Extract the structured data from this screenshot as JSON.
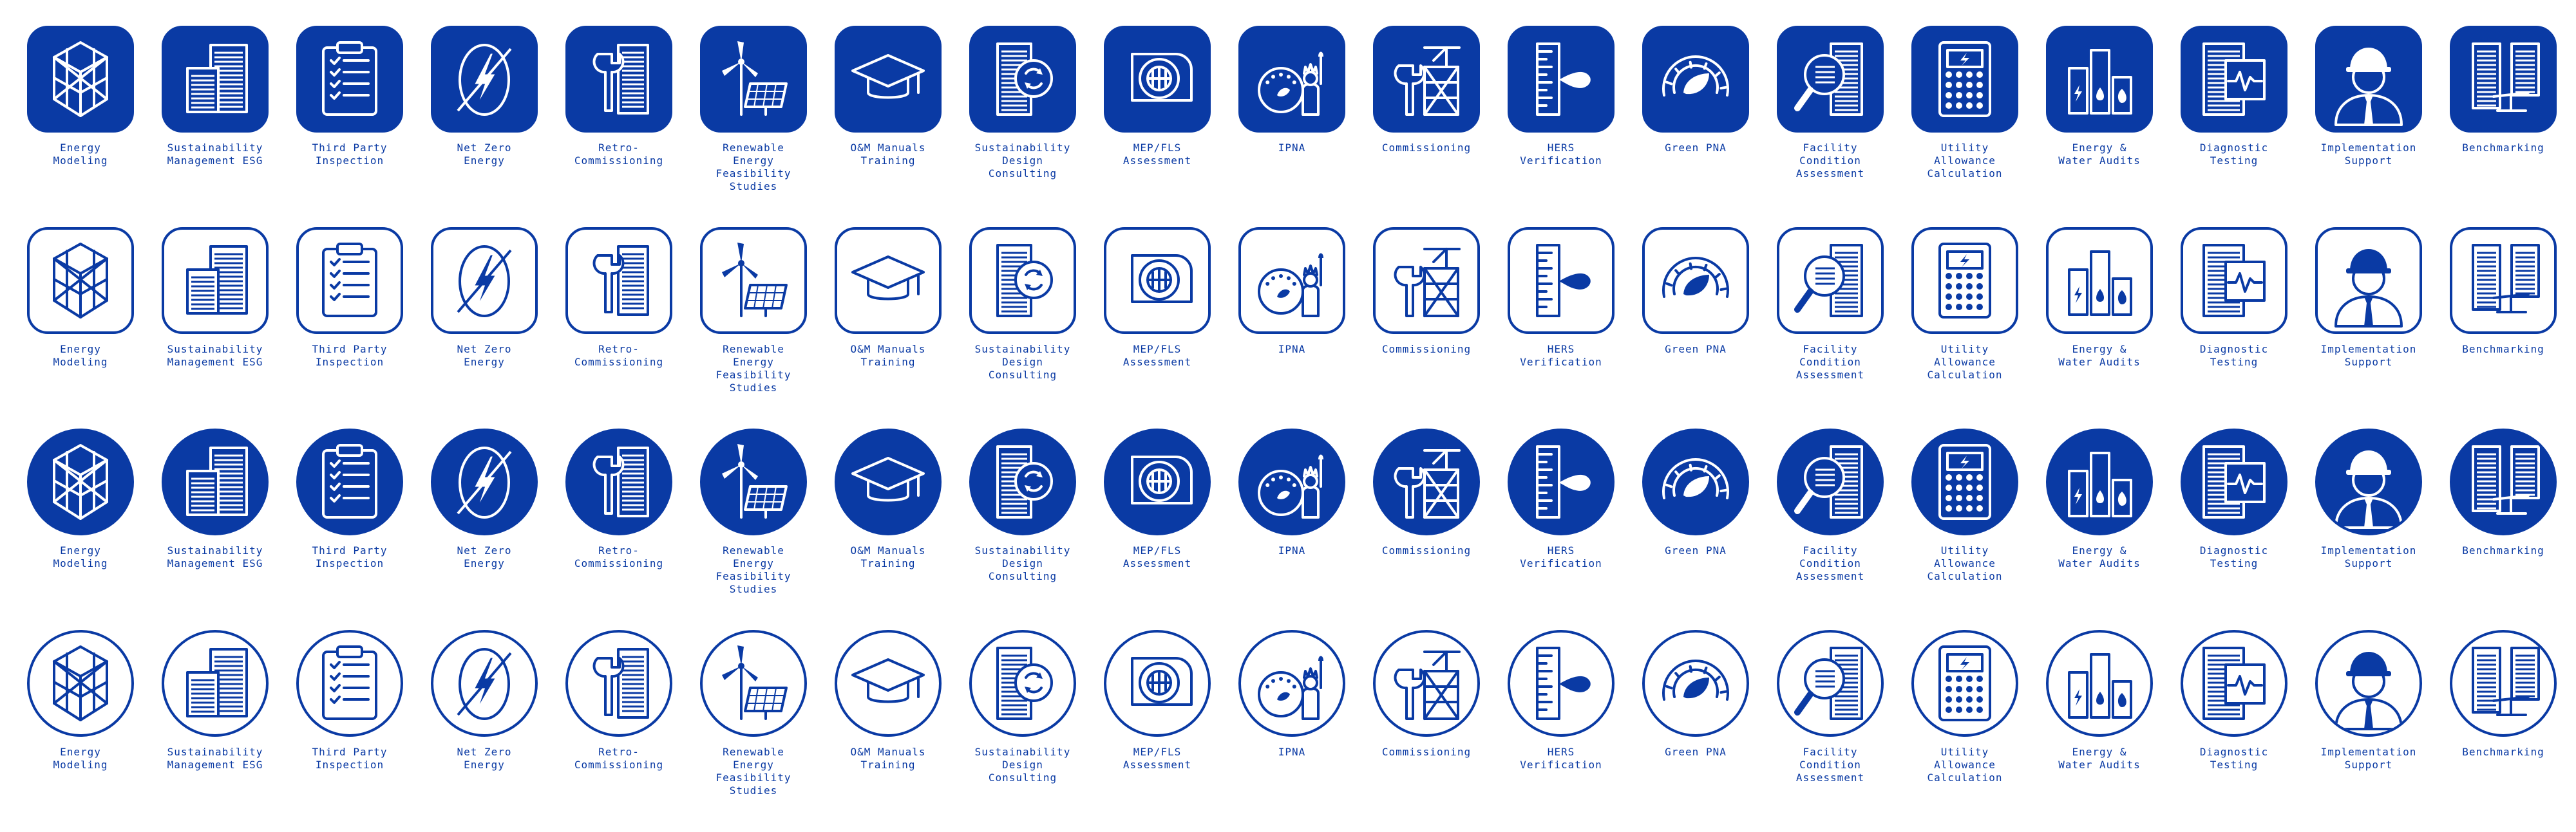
{
  "colors": {
    "brand_blue": "#0a3aa4",
    "background": "#ffffff"
  },
  "icons": [
    {
      "id": "energy-modeling",
      "glyph": "hexagon-3d-structure-icon",
      "lines": [
        "Energy",
        "Modeling"
      ]
    },
    {
      "id": "sustainability-management-esg",
      "glyph": "buildings-icon",
      "lines": [
        "Sustainability",
        "Management ESG"
      ]
    },
    {
      "id": "third-party-inspection",
      "glyph": "clipboard-checklist-icon",
      "lines": [
        "Third Party",
        "Inspection"
      ]
    },
    {
      "id": "net-zero-energy",
      "glyph": "zero-lightning-icon",
      "lines": [
        "Net Zero",
        "Energy"
      ]
    },
    {
      "id": "retro-commissioning",
      "glyph": "wrench-building-icon",
      "lines": [
        "Retro-",
        "Commissioning"
      ]
    },
    {
      "id": "renewable-energy-feasibility-studies",
      "glyph": "wind-turbine-solar-panel-icon",
      "lines": [
        "Renewable",
        "Energy",
        "Feasibility",
        "Studies"
      ]
    },
    {
      "id": "om-manuals-training",
      "glyph": "graduation-cap-icon",
      "lines": [
        "O&M Manuals",
        "Training"
      ]
    },
    {
      "id": "sustainability-design-consulting",
      "glyph": "document-recycle-icon",
      "lines": [
        "Sustainability",
        "Design",
        "Consulting"
      ]
    },
    {
      "id": "mep-fls-assessment",
      "glyph": "fan-coil-unit-icon",
      "lines": [
        "MEP/FLS",
        "Assessment"
      ]
    },
    {
      "id": "ipna",
      "glyph": "gauge-statue-of-liberty-icon",
      "lines": [
        "IPNA"
      ]
    },
    {
      "id": "commissioning",
      "glyph": "wrench-scaffold-icon",
      "lines": [
        "Commissioning"
      ]
    },
    {
      "id": "hers-verification",
      "glyph": "ruler-droplet-icon",
      "lines": [
        "HERS",
        "Verification"
      ]
    },
    {
      "id": "green-pna",
      "glyph": "leaf-gauge-icon",
      "lines": [
        "Green PNA"
      ]
    },
    {
      "id": "facility-condition-assessment",
      "glyph": "magnifier-building-icon",
      "lines": [
        "Facility",
        "Condition",
        "Assessment"
      ]
    },
    {
      "id": "utility-allowance-calculation",
      "glyph": "calculator-icon",
      "lines": [
        "Utility",
        "Allowance",
        "Calculation"
      ]
    },
    {
      "id": "energy-water-audits",
      "glyph": "energy-water-bars-icon",
      "lines": [
        "Energy &",
        "Water Audits"
      ]
    },
    {
      "id": "diagnostic-testing",
      "glyph": "document-pulse-icon",
      "lines": [
        "Diagnostic",
        "Testing"
      ]
    },
    {
      "id": "implementation-support",
      "glyph": "hard-hat-worker-icon",
      "lines": [
        "Implementation",
        "Support"
      ]
    },
    {
      "id": "benchmarking",
      "glyph": "buildings-scale-icon",
      "lines": [
        "Benchmarking"
      ]
    }
  ],
  "variants": [
    {
      "id": "filled-rounded-square",
      "shape": "square",
      "fill": "filled"
    },
    {
      "id": "outline-rounded-square",
      "shape": "square",
      "fill": "outline"
    },
    {
      "id": "filled-circle",
      "shape": "circle",
      "fill": "filled"
    },
    {
      "id": "outline-circle",
      "shape": "circle",
      "fill": "outline"
    }
  ]
}
